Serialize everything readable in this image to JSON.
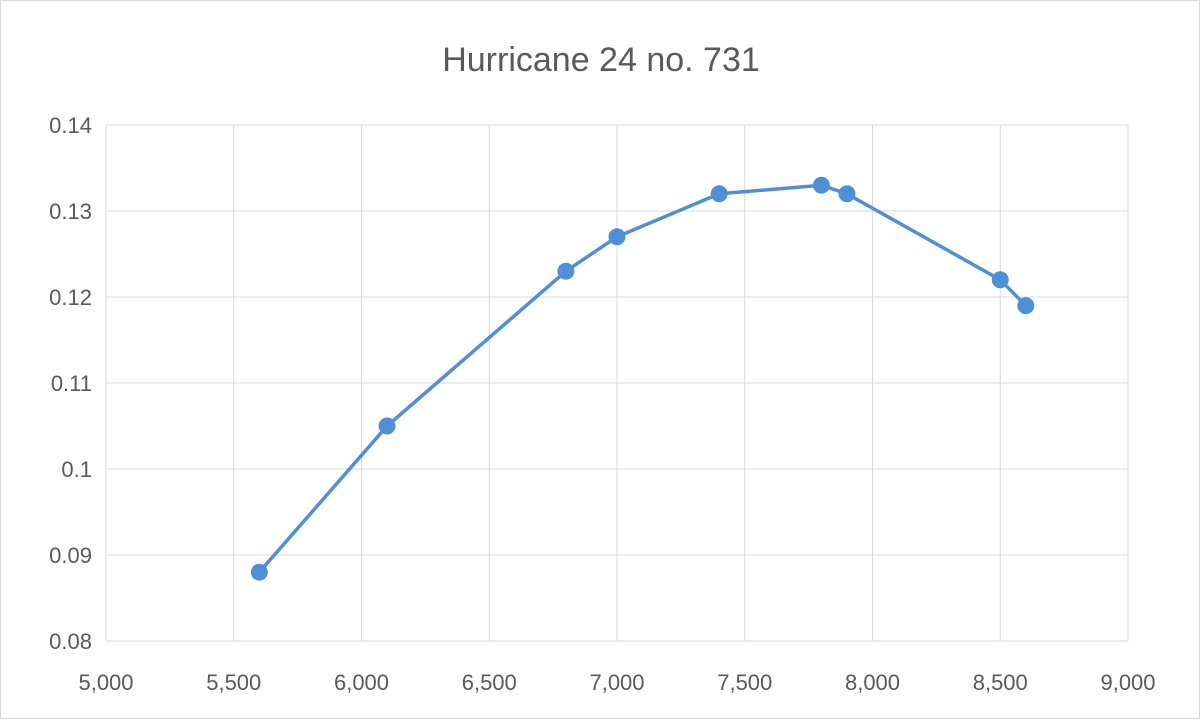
{
  "chart_data": {
    "type": "scatter",
    "title": "Hurricane 24 no. 731",
    "xlabel": "",
    "ylabel": "",
    "xlim": [
      5000,
      9000
    ],
    "ylim": [
      0.08,
      0.14
    ],
    "x_ticks": [
      "5,000",
      "5,500",
      "6,000",
      "6,500",
      "7,000",
      "7,500",
      "8,000",
      "8,500",
      "9,000"
    ],
    "y_ticks": [
      "0.08",
      "0.09",
      "0.1",
      "0.11",
      "0.12",
      "0.13",
      "0.14"
    ],
    "grid": true,
    "legend": "none",
    "series": [
      {
        "color": "#4f8fd6",
        "line": true,
        "markers": true,
        "x": [
          5600,
          6100,
          6800,
          7000,
          7400,
          7800,
          7900,
          8500,
          8600
        ],
        "y": [
          0.088,
          0.105,
          0.123,
          0.127,
          0.132,
          0.133,
          0.132,
          0.122,
          0.119
        ]
      }
    ]
  }
}
